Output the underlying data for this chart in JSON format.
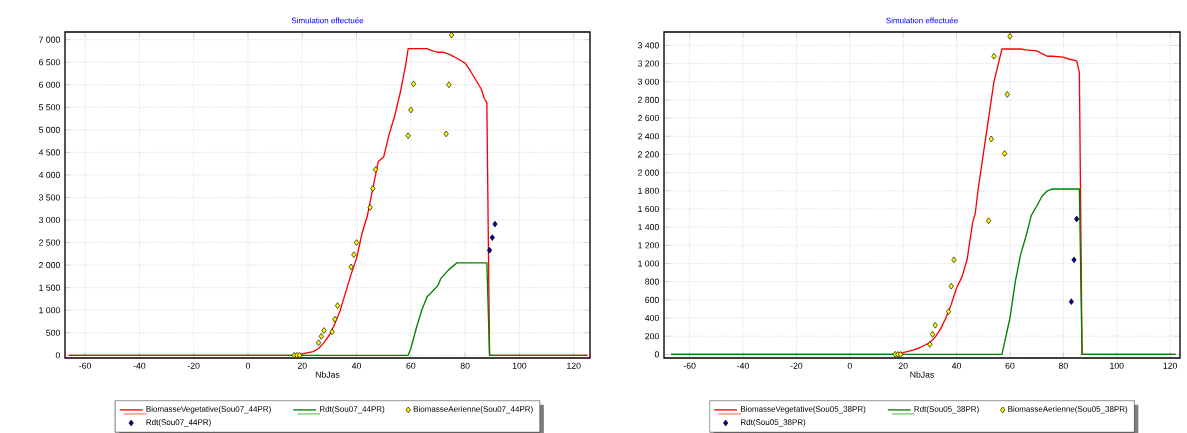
{
  "chart_data": [
    {
      "type": "line",
      "title": "Simulation effectuée",
      "xlabel": "NbJas",
      "xlim": [
        -67.4,
        126
      ],
      "ylim": [
        -60,
        7170
      ],
      "xticks": [
        -60,
        -40,
        -20,
        0,
        20,
        40,
        60,
        80,
        100,
        120
      ],
      "yticks": [
        0,
        500,
        {
          "value": 1000,
          "label": "1 000"
        },
        {
          "value": 1500,
          "label": "1 500"
        },
        {
          "value": 2000,
          "label": "2 000"
        },
        {
          "value": 2500,
          "label": "2 500"
        },
        {
          "value": 3000,
          "label": "3 000"
        },
        {
          "value": 3500,
          "label": "3 500"
        },
        {
          "value": 4000,
          "label": "4 000"
        },
        {
          "value": 4500,
          "label": "4 500"
        },
        {
          "value": 5000,
          "label": "5 000"
        },
        {
          "value": 5500,
          "label": "5 500"
        },
        {
          "value": 6000,
          "label": "6 000"
        },
        {
          "value": 6500,
          "label": "6 500"
        },
        {
          "value": 7000,
          "label": "7 000"
        }
      ],
      "grid": true,
      "legend": "bottom",
      "series": [
        {
          "name": "BiomasseVegetative(Sou07_44PR)",
          "type": "line",
          "color": "#ff0000",
          "marker": "none",
          "x": [
            -66,
            18,
            20,
            24,
            26,
            28,
            30,
            32,
            34,
            36,
            38,
            40,
            42,
            44,
            46,
            48,
            49,
            50,
            52,
            54,
            56,
            58,
            59,
            66,
            68,
            70,
            72,
            74,
            76,
            78,
            80,
            82,
            84,
            86,
            87,
            88,
            89,
            125
          ],
          "values": [
            0,
            0,
            30,
            80,
            150,
            280,
            450,
            700,
            1000,
            1400,
            1800,
            2150,
            2700,
            3100,
            3700,
            4300,
            4350,
            4400,
            4900,
            5300,
            5800,
            6400,
            6800,
            6800,
            6750,
            6720,
            6720,
            6680,
            6620,
            6550,
            6480,
            6300,
            6100,
            5900,
            5700,
            5600,
            0,
            0
          ]
        },
        {
          "name": "Rdt(Sou07_44PR)",
          "type": "line",
          "color": "#008000",
          "marker": "none",
          "x": [
            -66,
            59,
            60,
            62,
            64,
            66,
            68,
            70,
            71,
            74,
            77,
            88,
            89,
            125
          ],
          "values": [
            0,
            0,
            150,
            600,
            1000,
            1300,
            1420,
            1550,
            1700,
            1900,
            2050,
            2050,
            0,
            0
          ]
        },
        {
          "name": "BiomasseAerienne(Sou07_44PR)",
          "type": "scatter",
          "color": "#ffff00",
          "marker": "diamond",
          "x": [
            17,
            18,
            19,
            26,
            27,
            28,
            31,
            32,
            33,
            38,
            39,
            40,
            45,
            46,
            47,
            59,
            60,
            61,
            73,
            74,
            75
          ],
          "values": [
            0,
            0,
            0,
            280,
            420,
            550,
            520,
            800,
            1100,
            1960,
            2230,
            2500,
            3280,
            3700,
            4120,
            4870,
            5440,
            6020,
            4910,
            6000,
            7100
          ]
        },
        {
          "name": "Rdt(Sou07_44PR)",
          "type": "scatter",
          "color": "#0000a0",
          "marker": "diamond",
          "x": [
            89,
            90,
            91
          ],
          "values": [
            2330,
            2610,
            2910
          ]
        }
      ]
    },
    {
      "type": "line",
      "title": "Simulation effectuée",
      "xlabel": "NbJas",
      "xlim": [
        -69.6,
        123.7
      ],
      "ylim": [
        -40,
        3547
      ],
      "xticks": [
        -60,
        -40,
        -20,
        0,
        20,
        40,
        60,
        80,
        100,
        120
      ],
      "yticks": [
        0,
        200,
        400,
        600,
        800,
        {
          "value": 1000,
          "label": "1 000"
        },
        {
          "value": 1200,
          "label": "1 200"
        },
        {
          "value": 1400,
          "label": "1 400"
        },
        {
          "value": 1600,
          "label": "1 600"
        },
        {
          "value": 1800,
          "label": "1 800"
        },
        {
          "value": 2000,
          "label": "2 000"
        },
        {
          "value": 2200,
          "label": "2 200"
        },
        {
          "value": 2400,
          "label": "2 400"
        },
        {
          "value": 2600,
          "label": "2 600"
        },
        {
          "value": 2800,
          "label": "2 800"
        },
        {
          "value": 3000,
          "label": "3 000"
        },
        {
          "value": 3200,
          "label": "3 200"
        },
        {
          "value": 3400,
          "label": "3 400"
        }
      ],
      "grid": true,
      "legend": "bottom",
      "series": [
        {
          "name": "BiomasseVegetative(Sou05_38PR)",
          "type": "line",
          "color": "#ff0000",
          "marker": "none",
          "x": [
            -67,
            16,
            18,
            20,
            24,
            26,
            28,
            30,
            32,
            34,
            36,
            38,
            40,
            42,
            44,
            46,
            47,
            48,
            50,
            52,
            54,
            57,
            64,
            66,
            70,
            72,
            74,
            76,
            80,
            82,
            85,
            86,
            87,
            122
          ],
          "values": [
            0,
            0,
            10,
            20,
            50,
            70,
            100,
            130,
            190,
            280,
            400,
            550,
            730,
            850,
            1050,
            1450,
            1550,
            1800,
            2200,
            2600,
            3000,
            3360,
            3360,
            3350,
            3340,
            3310,
            3280,
            3280,
            3270,
            3250,
            3230,
            3100,
            0,
            0
          ]
        },
        {
          "name": "Rdt(Sou05_38PR)",
          "type": "line",
          "color": "#008000",
          "marker": "none",
          "x": [
            -67,
            57,
            60,
            62,
            64,
            66,
            68,
            70,
            72,
            74,
            76,
            86,
            87,
            122
          ],
          "values": [
            0,
            0,
            400,
            800,
            1100,
            1300,
            1530,
            1630,
            1740,
            1800,
            1820,
            1820,
            0,
            0
          ]
        },
        {
          "name": "BiomasseAerienne(Sou05_38PR)",
          "type": "scatter",
          "color": "#ffff00",
          "marker": "diamond",
          "x": [
            17,
            18,
            19,
            30,
            31,
            32,
            37,
            38,
            39,
            52,
            53,
            54,
            58,
            59,
            60
          ],
          "values": [
            0,
            0,
            0,
            110,
            220,
            320,
            470,
            750,
            1040,
            1470,
            2370,
            3280,
            2210,
            2860,
            3500
          ]
        },
        {
          "name": "Rdt(Sou05_38PR)",
          "type": "scatter",
          "color": "#0000a0",
          "marker": "diamond",
          "x": [
            83,
            84,
            85
          ],
          "values": [
            580,
            1040,
            1490
          ]
        }
      ]
    }
  ]
}
